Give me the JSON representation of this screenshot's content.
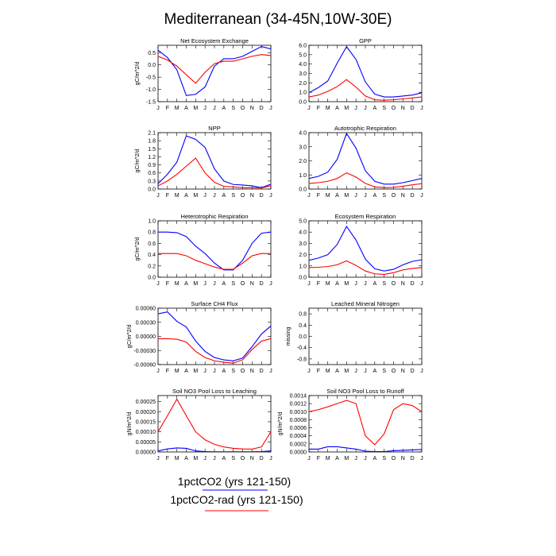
{
  "figure": {
    "title": "Mediterranean (34-45N,10W-30E)",
    "legend": [
      {
        "label": "1pctCO2 (yrs 121-150)",
        "color": "#0000ff"
      },
      {
        "label": "1pctCO2-rad (yrs 121-150)",
        "color": "#ff0000"
      }
    ]
  },
  "chart_data": [
    {
      "type": "line",
      "title": "Net Ecosystem Exchange",
      "ylabel": "gC/m^2/d",
      "x": [
        "J",
        "F",
        "M",
        "A",
        "M",
        "J",
        "J",
        "A",
        "S",
        "O",
        "N",
        "D",
        "J"
      ],
      "ylim": [
        -1.5,
        0.8
      ],
      "yticks": [
        -1.5,
        -1.0,
        -0.5,
        0.0,
        0.5
      ],
      "ytick_labels": [
        "-1.5",
        "-1.0",
        "-0.5",
        "0.0",
        "0.5"
      ],
      "series": [
        {
          "color": "#0000ff",
          "values": [
            0.6,
            0.3,
            -0.2,
            -1.25,
            -1.2,
            -0.9,
            -0.05,
            0.25,
            0.25,
            0.35,
            0.55,
            0.75,
            0.65
          ]
        },
        {
          "color": "#ff0000",
          "values": [
            0.35,
            0.2,
            -0.05,
            -0.4,
            -0.75,
            -0.3,
            0.05,
            0.15,
            0.15,
            0.25,
            0.35,
            0.42,
            0.38
          ]
        }
      ]
    },
    {
      "type": "line",
      "title": "GPP",
      "ylabel": "",
      "x": [
        "J",
        "F",
        "M",
        "A",
        "M",
        "J",
        "J",
        "A",
        "S",
        "O",
        "N",
        "D",
        "J"
      ],
      "ylim": [
        0,
        6
      ],
      "yticks": [
        0,
        1,
        2,
        3,
        4,
        5,
        6
      ],
      "ytick_labels": [
        "0.0",
        "1.0",
        "2.0",
        "3.0",
        "4.0",
        "5.0",
        "6.0"
      ],
      "series": [
        {
          "color": "#0000ff",
          "values": [
            0.95,
            1.5,
            2.2,
            4.1,
            5.85,
            4.5,
            2.1,
            0.8,
            0.5,
            0.5,
            0.6,
            0.7,
            0.95
          ]
        },
        {
          "color": "#ff0000",
          "values": [
            0.5,
            0.7,
            1.1,
            1.6,
            2.35,
            1.55,
            0.6,
            0.2,
            0.15,
            0.2,
            0.3,
            0.4,
            0.5
          ]
        }
      ]
    },
    {
      "type": "line",
      "title": "NPP",
      "ylabel": "gC/m^2/d",
      "x": [
        "J",
        "F",
        "M",
        "A",
        "M",
        "J",
        "J",
        "A",
        "S",
        "O",
        "N",
        "D",
        "J"
      ],
      "ylim": [
        0,
        2.1
      ],
      "yticks": [
        0,
        0.3,
        0.6,
        0.9,
        1.2,
        1.5,
        1.8,
        2.1
      ],
      "ytick_labels": [
        "0.0",
        "0.3",
        "0.6",
        "0.9",
        "1.2",
        "1.5",
        "1.8",
        "2.1"
      ],
      "series": [
        {
          "color": "#0000ff",
          "values": [
            0.2,
            0.55,
            1.0,
            1.98,
            1.85,
            1.55,
            0.75,
            0.3,
            0.17,
            0.15,
            0.12,
            0.05,
            0.18
          ]
        },
        {
          "color": "#ff0000",
          "values": [
            0.12,
            0.3,
            0.55,
            0.85,
            1.15,
            0.6,
            0.25,
            0.1,
            0.08,
            0.05,
            0.05,
            0.04,
            0.12
          ]
        }
      ]
    },
    {
      "type": "line",
      "title": "Autotrophic Respiration",
      "ylabel": "",
      "x": [
        "J",
        "F",
        "M",
        "A",
        "M",
        "J",
        "J",
        "A",
        "S",
        "O",
        "N",
        "D",
        "J"
      ],
      "ylim": [
        0,
        4
      ],
      "yticks": [
        0,
        1,
        2,
        3,
        4
      ],
      "ytick_labels": [
        "0.0",
        "1.0",
        "2.0",
        "3.0",
        "4.0"
      ],
      "series": [
        {
          "color": "#0000ff",
          "values": [
            0.75,
            0.9,
            1.2,
            2.1,
            3.95,
            2.9,
            1.3,
            0.55,
            0.35,
            0.35,
            0.45,
            0.6,
            0.75
          ]
        },
        {
          "color": "#ff0000",
          "values": [
            0.4,
            0.45,
            0.55,
            0.75,
            1.15,
            0.85,
            0.4,
            0.15,
            0.1,
            0.12,
            0.2,
            0.3,
            0.38
          ]
        }
      ]
    },
    {
      "type": "line",
      "title": "Heterotrophic Respiration",
      "ylabel": "gC/m^2/d",
      "x": [
        "J",
        "F",
        "M",
        "A",
        "M",
        "J",
        "J",
        "A",
        "S",
        "O",
        "N",
        "D",
        "J"
      ],
      "ylim": [
        0,
        1
      ],
      "yticks": [
        0,
        0.2,
        0.4,
        0.6,
        0.8,
        1.0
      ],
      "ytick_labels": [
        "0.0",
        "0.2",
        "0.4",
        "0.6",
        "0.8",
        "1.0"
      ],
      "series": [
        {
          "color": "#0000ff",
          "values": [
            0.8,
            0.8,
            0.79,
            0.72,
            0.55,
            0.42,
            0.25,
            0.13,
            0.13,
            0.3,
            0.6,
            0.78,
            0.8
          ]
        },
        {
          "color": "#ff0000",
          "values": [
            0.42,
            0.42,
            0.42,
            0.38,
            0.3,
            0.24,
            0.18,
            0.14,
            0.14,
            0.25,
            0.38,
            0.42,
            0.42
          ]
        }
      ]
    },
    {
      "type": "line",
      "title": "Ecosystem Respiration",
      "ylabel": "",
      "x": [
        "J",
        "F",
        "M",
        "A",
        "M",
        "J",
        "J",
        "A",
        "S",
        "O",
        "N",
        "D",
        "J"
      ],
      "ylim": [
        0,
        5
      ],
      "yticks": [
        0,
        1,
        2,
        3,
        4,
        5
      ],
      "ytick_labels": [
        "0.0",
        "1.0",
        "2.0",
        "3.0",
        "4.0",
        "5.0"
      ],
      "series": [
        {
          "color": "#0000ff",
          "values": [
            1.5,
            1.7,
            2.0,
            2.9,
            4.5,
            3.3,
            1.6,
            0.75,
            0.55,
            0.7,
            1.1,
            1.4,
            1.55
          ]
        },
        {
          "color": "#ff0000",
          "values": [
            0.85,
            0.88,
            0.95,
            1.1,
            1.45,
            1.05,
            0.55,
            0.3,
            0.25,
            0.4,
            0.65,
            0.78,
            0.85
          ]
        }
      ]
    },
    {
      "type": "line",
      "title": "Surface CH4 Flux",
      "ylabel": "gC/m^2/d",
      "x": [
        "J",
        "F",
        "M",
        "A",
        "M",
        "J",
        "J",
        "A",
        "S",
        "O",
        "N",
        "D",
        "J"
      ],
      "ylim": [
        -0.0006,
        0.0006
      ],
      "yticks": [
        -0.0006,
        -0.0003,
        0,
        0.0003,
        0.0006
      ],
      "ytick_labels": [
        "-0.00060",
        "-0.00030",
        "0.00000",
        "0.00030",
        "0.00060"
      ],
      "series": [
        {
          "color": "#0000ff",
          "values": [
            0.00048,
            0.00052,
            0.00032,
            0.0002,
            -0.0001,
            -0.00032,
            -0.00045,
            -0.0005,
            -0.00052,
            -0.00046,
            -0.00022,
            5e-05,
            0.00022
          ]
        },
        {
          "color": "#ff0000",
          "values": [
            -5e-05,
            -5e-05,
            -6e-05,
            -0.00012,
            -0.00032,
            -0.00045,
            -0.00052,
            -0.00055,
            -0.00057,
            -0.0005,
            -0.00028,
            -0.0001,
            -5e-05
          ]
        }
      ]
    },
    {
      "type": "line",
      "title": "Leached Mineral Nitrogen",
      "ylabel": "missing",
      "x": [
        "J",
        "F",
        "M",
        "A",
        "M",
        "J",
        "J",
        "A",
        "S",
        "O",
        "N",
        "D",
        "J"
      ],
      "ylim": [
        -1,
        1
      ],
      "yticks": [
        -0.8,
        -0.4,
        0,
        0.4,
        0.8
      ],
      "ytick_labels": [
        "-0.8",
        "-0.4",
        "0.0",
        "0.4",
        "0.8"
      ],
      "series": []
    },
    {
      "type": "line",
      "title": "Soil NO3 Pool Loss to Leaching",
      "ylabel": "gN/m^2/d",
      "x": [
        "J",
        "F",
        "M",
        "A",
        "M",
        "J",
        "J",
        "A",
        "S",
        "O",
        "N",
        "D",
        "J"
      ],
      "ylim": [
        0,
        0.00028
      ],
      "yticks": [
        0,
        5e-05,
        0.0001,
        0.00015,
        0.0002,
        0.00025
      ],
      "ytick_labels": [
        "0.00000",
        "0.00005",
        "0.00010",
        "0.00015",
        "0.00020",
        "0.00025"
      ],
      "series": [
        {
          "color": "#0000ff",
          "values": [
            5e-06,
            1.5e-05,
            2e-05,
            1.8e-05,
            5e-06,
            2e-06,
            1e-06,
            1e-06,
            1e-06,
            1e-06,
            1e-06,
            2e-06,
            5e-06
          ]
        },
        {
          "color": "#ff0000",
          "values": [
            0.0001,
            0.00018,
            0.000262,
            0.00018,
            0.0001,
            6e-05,
            3.8e-05,
            2.5e-05,
            1.8e-05,
            1.5e-05,
            1.4e-05,
            2.5e-05,
            0.0001
          ]
        }
      ]
    },
    {
      "type": "line",
      "title": "Soil NO3 Pool Loss to Runoff",
      "ylabel": "gN/m^2/d",
      "x": [
        "J",
        "F",
        "M",
        "A",
        "M",
        "J",
        "J",
        "A",
        "S",
        "O",
        "N",
        "D",
        "J"
      ],
      "ylim": [
        0,
        0.0014
      ],
      "yticks": [
        0,
        0.0002,
        0.0004,
        0.0006,
        0.0008,
        0.001,
        0.0012,
        0.0014
      ],
      "ytick_labels": [
        "0.0000",
        "0.0002",
        "0.0004",
        "0.0006",
        "0.0008",
        "0.0010",
        "0.0012",
        "0.0014"
      ],
      "series": [
        {
          "color": "#0000ff",
          "values": [
            7e-05,
            7e-05,
            0.00013,
            0.00013,
            0.0001,
            7e-05,
            2e-05,
            1e-05,
            1e-05,
            3e-05,
            4e-05,
            5e-05,
            6e-05
          ]
        },
        {
          "color": "#ff0000",
          "values": [
            0.001,
            0.00105,
            0.00112,
            0.0012,
            0.00128,
            0.0012,
            0.0004,
            0.00018,
            0.00045,
            0.00105,
            0.0012,
            0.00115,
            0.001
          ]
        }
      ]
    }
  ]
}
